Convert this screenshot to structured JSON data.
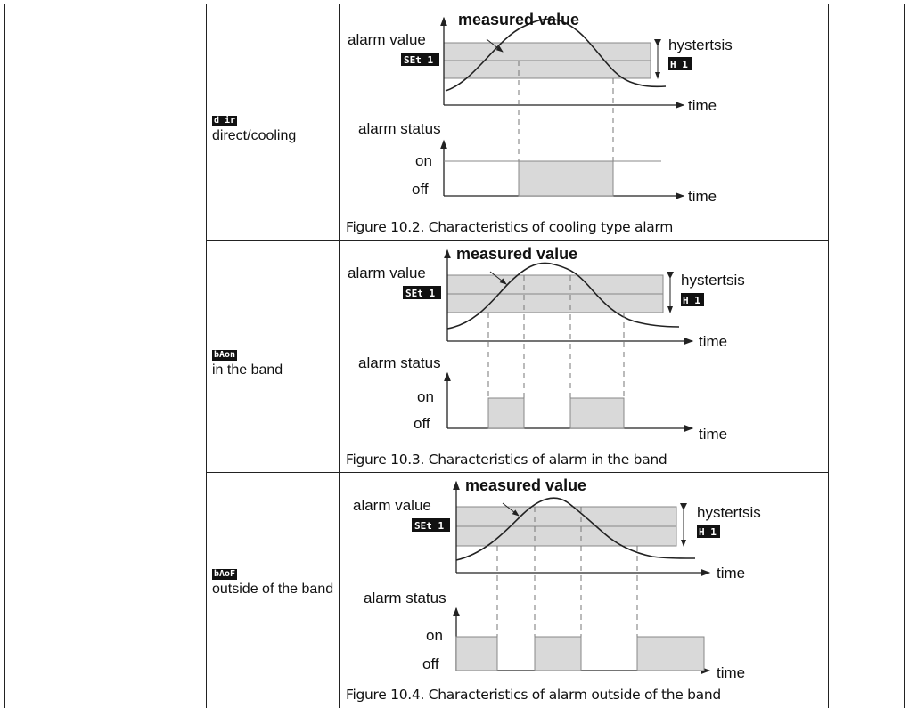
{
  "rows": [
    {
      "code": "d ir",
      "label": "direct/cooling",
      "figure": {
        "title": "measured value",
        "alarm_value_label": "alarm value",
        "set_code": "SEt 1",
        "hysteresis_label": "hystertsis",
        "hyst_code": "H 1",
        "time_label": "time",
        "status_label": "alarm status",
        "on_label": "on",
        "off_label": "off",
        "caption": "Figure 10.2. Characteristics of cooling type alarm"
      }
    },
    {
      "code": "bAon",
      "label": "in the band",
      "figure": {
        "title": "measured value",
        "alarm_value_label": "alarm value",
        "set_code": "SEt 1",
        "hysteresis_label": "hystertsis",
        "hyst_code": "H 1",
        "time_label": "time",
        "status_label": "alarm status",
        "on_label": "on",
        "off_label": "off",
        "caption": "Figure 10.3. Characteristics of alarm in the band"
      }
    },
    {
      "code": "bAoF",
      "label": "outside of the band",
      "figure": {
        "title": "measured value",
        "alarm_value_label": "alarm value",
        "set_code": "SEt 1",
        "hysteresis_label": "hystertsis",
        "hyst_code": "H 1",
        "time_label": "time",
        "status_label": "alarm status",
        "on_label": "on",
        "off_label": "off",
        "caption": "Figure 10.4. Characteristics of alarm outside of the band"
      }
    }
  ],
  "colors": {
    "band": "#d9d9d9",
    "line": "#222222",
    "lcd_bg": "#111111"
  }
}
